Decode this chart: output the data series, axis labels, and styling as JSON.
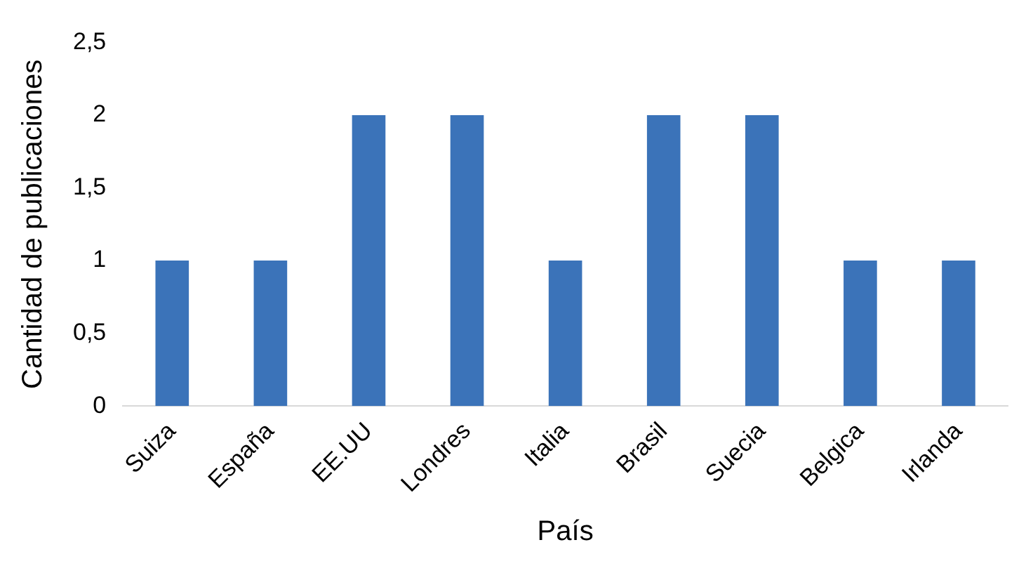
{
  "chart_data": {
    "type": "bar",
    "xlabel": "País",
    "ylabel": "Cantidad de publicaciones",
    "categories": [
      "Suiza",
      "España",
      "EE.UU",
      "Londres",
      "Italia",
      "Brasil",
      "Suecia",
      "Belgica",
      "Irlanda"
    ],
    "values": [
      1,
      1,
      2,
      2,
      1,
      2,
      2,
      1,
      1
    ],
    "color": "#3b73b9",
    "ylim": [
      0,
      2.5
    ],
    "yticks": [
      0,
      {
        "value": 0.5,
        "label": "0,5"
      },
      1,
      {
        "value": 1.5,
        "label": "1,5"
      },
      2,
      {
        "value": 2.5,
        "label": "2,5"
      }
    ],
    "grid": false,
    "legend": false
  }
}
